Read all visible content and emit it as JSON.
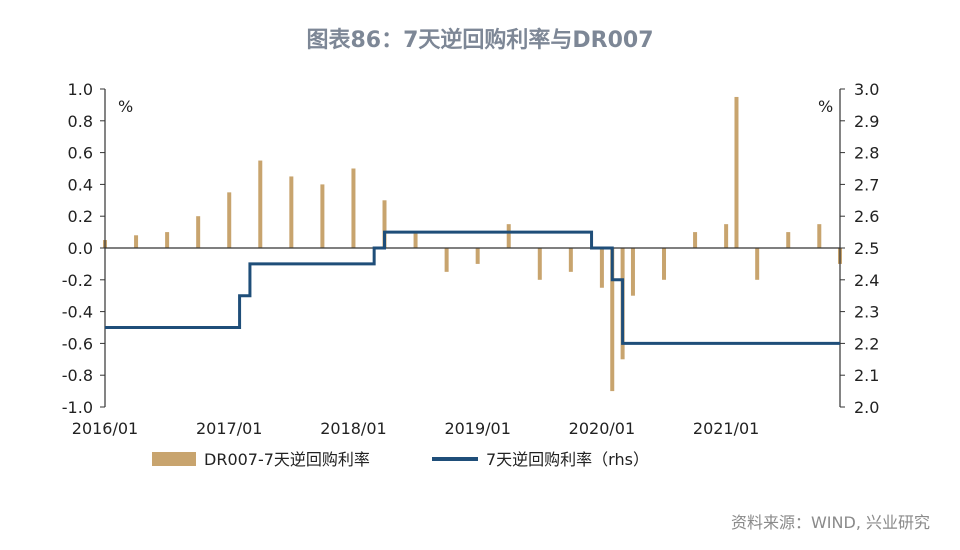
{
  "chart_data": {
    "type": "bar+line",
    "title": "图表86：7天逆回购利率与DR007",
    "source": "资料来源：WIND, 兴业研究",
    "left_unit": "%",
    "right_unit": "%",
    "ylim_left": [
      -1.0,
      1.0
    ],
    "ylim_right": [
      2.0,
      3.0
    ],
    "yticks_left": [
      "1.0",
      "0.8",
      "0.6",
      "0.4",
      "0.2",
      "0.0",
      "-0.2",
      "-0.4",
      "-0.6",
      "-0.8",
      "-1.0"
    ],
    "yticks_right": [
      "3.0",
      "2.9",
      "2.8",
      "2.7",
      "2.6",
      "2.5",
      "2.4",
      "2.3",
      "2.2",
      "2.1",
      "2.0"
    ],
    "xticks": [
      "2016/01",
      "2017/01",
      "2018/01",
      "2019/01",
      "2020/01",
      "2021/01"
    ],
    "xlim": [
      "2016/01",
      "2021/12"
    ],
    "legend": [
      "DR007-7天逆回购利率",
      "7天逆回购利率（rhs）"
    ],
    "colors": {
      "bars": "#c8a46e",
      "line": "#1f4e79",
      "title": "#7d8796"
    },
    "series": [
      {
        "name": "DR007-7天逆回购利率",
        "axis": "left",
        "type": "bar",
        "x": [
          "2016/01",
          "2016/04",
          "2016/07",
          "2016/10",
          "2017/01",
          "2017/04",
          "2017/07",
          "2017/10",
          "2018/01",
          "2018/04",
          "2018/07",
          "2018/10",
          "2019/01",
          "2019/04",
          "2019/07",
          "2019/10",
          "2020/01",
          "2020/02",
          "2020/03",
          "2020/04",
          "2020/07",
          "2020/10",
          "2021/01",
          "2021/02",
          "2021/04",
          "2021/07",
          "2021/10",
          "2021/12"
        ],
        "values": [
          0.05,
          0.08,
          0.1,
          0.2,
          0.35,
          0.55,
          0.45,
          0.4,
          0.5,
          0.3,
          0.1,
          -0.15,
          -0.1,
          0.15,
          -0.2,
          -0.15,
          -0.25,
          -0.9,
          -0.7,
          -0.3,
          -0.2,
          0.1,
          0.15,
          0.95,
          -0.2,
          0.1,
          0.15,
          -0.1
        ]
      },
      {
        "name": "7天逆回购利率（rhs）",
        "axis": "right",
        "type": "step",
        "x": [
          "2016/01",
          "2017/02",
          "2017/03",
          "2018/03",
          "2018/04",
          "2019/12",
          "2020/02",
          "2020/03",
          "2021/12"
        ],
        "values": [
          2.25,
          2.35,
          2.45,
          2.5,
          2.55,
          2.5,
          2.4,
          2.2,
          2.2
        ]
      }
    ]
  }
}
